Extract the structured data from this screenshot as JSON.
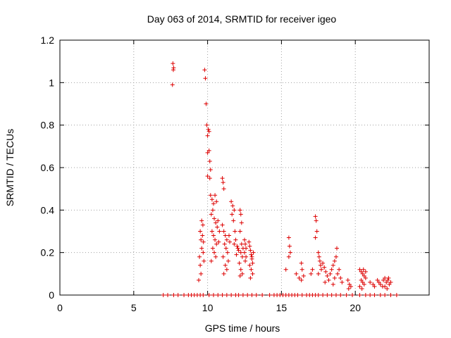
{
  "chart_data": {
    "type": "scatter",
    "title": "Day 063 of 2014, SRMTID for receiver igeo",
    "xlabel": "GPS time / hours",
    "ylabel": "SRMTID / TECUs",
    "xlim": [
      0,
      25
    ],
    "ylim": [
      0,
      1.2
    ],
    "grid": true,
    "marker": "+",
    "xticks": [
      0,
      5,
      10,
      15,
      20
    ],
    "xtick_labels": [
      "0",
      "5",
      "10",
      "15",
      "20"
    ],
    "yticks": [
      0,
      0.2,
      0.4,
      0.6,
      0.8,
      1,
      1.2
    ],
    "ytick_labels": [
      "0",
      "0.2",
      "0.4",
      "0.6",
      "0.8",
      "1",
      "1.2"
    ],
    "series": [
      {
        "name": "SRMTID",
        "color": "#dd0000",
        "points": [
          [
            7.65,
            1.09
          ],
          [
            7.7,
            1.07
          ],
          [
            7.68,
            1.06
          ],
          [
            7.62,
            0.99
          ],
          [
            9.8,
            1.06
          ],
          [
            9.85,
            1.02
          ],
          [
            9.9,
            0.9
          ],
          [
            9.95,
            0.8
          ],
          [
            10.05,
            0.78
          ],
          [
            10.1,
            0.77
          ],
          [
            10.0,
            0.75
          ],
          [
            10.1,
            0.68
          ],
          [
            10.0,
            0.67
          ],
          [
            10.15,
            0.63
          ],
          [
            10.2,
            0.59
          ],
          [
            10.0,
            0.56
          ],
          [
            10.15,
            0.55
          ],
          [
            9.5,
            0.3
          ],
          [
            9.55,
            0.26
          ],
          [
            9.6,
            0.22
          ],
          [
            9.45,
            0.18
          ],
          [
            9.5,
            0.14
          ],
          [
            9.55,
            0.1
          ],
          [
            9.4,
            0.07
          ],
          [
            9.6,
            0.35
          ],
          [
            9.65,
            0.28
          ],
          [
            9.7,
            0.2
          ],
          [
            9.75,
            0.16
          ],
          [
            9.68,
            0.33
          ],
          [
            9.72,
            0.25
          ],
          [
            10.2,
            0.47
          ],
          [
            10.3,
            0.45
          ],
          [
            10.4,
            0.43
          ],
          [
            10.5,
            0.47
          ],
          [
            10.6,
            0.44
          ],
          [
            10.35,
            0.4
          ],
          [
            10.25,
            0.38
          ],
          [
            10.45,
            0.36
          ],
          [
            10.55,
            0.34
          ],
          [
            10.65,
            0.32
          ],
          [
            10.3,
            0.3
          ],
          [
            10.4,
            0.28
          ],
          [
            10.5,
            0.26
          ],
          [
            10.6,
            0.24
          ],
          [
            10.35,
            0.22
          ],
          [
            10.45,
            0.2
          ],
          [
            10.55,
            0.18
          ],
          [
            10.25,
            0.16
          ],
          [
            10.7,
            0.35
          ],
          [
            10.8,
            0.3
          ],
          [
            10.75,
            0.25
          ],
          [
            11.0,
            0.55
          ],
          [
            11.05,
            0.53
          ],
          [
            11.1,
            0.5
          ],
          [
            11.0,
            0.33
          ],
          [
            11.1,
            0.3
          ],
          [
            11.2,
            0.28
          ],
          [
            11.3,
            0.26
          ],
          [
            11.15,
            0.24
          ],
          [
            11.25,
            0.22
          ],
          [
            11.35,
            0.2
          ],
          [
            11.05,
            0.18
          ],
          [
            11.4,
            0.16
          ],
          [
            11.5,
            0.25
          ],
          [
            11.45,
            0.28
          ],
          [
            11.2,
            0.14
          ],
          [
            11.3,
            0.12
          ],
          [
            11.1,
            0.1
          ],
          [
            11.6,
            0.44
          ],
          [
            11.7,
            0.42
          ],
          [
            11.8,
            0.4
          ],
          [
            11.65,
            0.38
          ],
          [
            11.75,
            0.35
          ],
          [
            11.85,
            0.3
          ],
          [
            11.9,
            0.26
          ],
          [
            12.0,
            0.23
          ],
          [
            12.1,
            0.21
          ],
          [
            11.95,
            0.19
          ],
          [
            12.05,
            0.22
          ],
          [
            11.8,
            0.24
          ],
          [
            12.2,
            0.4
          ],
          [
            12.25,
            0.38
          ],
          [
            12.3,
            0.34
          ],
          [
            12.2,
            0.3
          ],
          [
            12.3,
            0.24
          ],
          [
            12.4,
            0.22
          ],
          [
            12.25,
            0.2
          ],
          [
            12.35,
            0.18
          ],
          [
            12.15,
            0.15
          ],
          [
            12.25,
            0.12
          ],
          [
            12.35,
            0.1
          ],
          [
            12.2,
            0.09
          ],
          [
            12.5,
            0.26
          ],
          [
            12.55,
            0.24
          ],
          [
            12.6,
            0.22
          ],
          [
            12.5,
            0.2
          ],
          [
            12.6,
            0.18
          ],
          [
            12.55,
            0.16
          ],
          [
            12.8,
            0.25
          ],
          [
            12.85,
            0.23
          ],
          [
            12.9,
            0.21
          ],
          [
            12.95,
            0.19
          ],
          [
            13.0,
            0.17
          ],
          [
            13.05,
            0.15
          ],
          [
            12.85,
            0.14
          ],
          [
            12.95,
            0.12
          ],
          [
            13.05,
            0.1
          ],
          [
            12.9,
            0.08
          ],
          [
            13.0,
            0.18
          ],
          [
            13.1,
            0.2
          ],
          [
            15.5,
            0.27
          ],
          [
            15.55,
            0.23
          ],
          [
            15.6,
            0.2
          ],
          [
            15.5,
            0.18
          ],
          [
            15.3,
            0.12
          ],
          [
            16.0,
            0.1
          ],
          [
            16.2,
            0.08
          ],
          [
            16.35,
            0.15
          ],
          [
            16.4,
            0.12
          ],
          [
            16.5,
            0.09
          ],
          [
            16.35,
            0.07
          ],
          [
            17.0,
            0.1
          ],
          [
            17.1,
            0.12
          ],
          [
            17.3,
            0.37
          ],
          [
            17.35,
            0.35
          ],
          [
            17.4,
            0.3
          ],
          [
            17.3,
            0.27
          ],
          [
            17.5,
            0.2
          ],
          [
            17.55,
            0.18
          ],
          [
            17.6,
            0.16
          ],
          [
            17.65,
            0.14
          ],
          [
            17.7,
            0.12
          ],
          [
            17.5,
            0.1
          ],
          [
            17.8,
            0.15
          ],
          [
            17.9,
            0.13
          ],
          [
            18.0,
            0.11
          ],
          [
            18.1,
            0.09
          ],
          [
            18.2,
            0.07
          ],
          [
            17.95,
            0.06
          ],
          [
            18.3,
            0.1
          ],
          [
            18.4,
            0.12
          ],
          [
            18.5,
            0.14
          ],
          [
            18.6,
            0.16
          ],
          [
            18.7,
            0.18
          ],
          [
            18.75,
            0.22
          ],
          [
            18.6,
            0.08
          ],
          [
            18.8,
            0.1
          ],
          [
            18.9,
            0.12
          ],
          [
            19.0,
            0.08
          ],
          [
            19.1,
            0.06
          ],
          [
            18.5,
            0.05
          ],
          [
            19.5,
            0.07
          ],
          [
            19.6,
            0.05
          ],
          [
            19.7,
            0.04
          ],
          [
            19.55,
            0.03
          ],
          [
            20.3,
            0.12
          ],
          [
            20.4,
            0.11
          ],
          [
            20.5,
            0.1
          ],
          [
            20.6,
            0.09
          ],
          [
            20.7,
            0.08
          ],
          [
            20.4,
            0.07
          ],
          [
            20.5,
            0.06
          ],
          [
            20.6,
            0.05
          ],
          [
            20.3,
            0.04
          ],
          [
            20.7,
            0.11
          ],
          [
            20.55,
            0.12
          ],
          [
            20.45,
            0.03
          ],
          [
            21.0,
            0.06
          ],
          [
            21.2,
            0.05
          ],
          [
            21.3,
            0.04
          ],
          [
            21.5,
            0.07
          ],
          [
            21.6,
            0.06
          ],
          [
            21.7,
            0.05
          ],
          [
            21.9,
            0.07
          ],
          [
            22.0,
            0.08
          ],
          [
            22.1,
            0.06
          ],
          [
            22.2,
            0.07
          ],
          [
            22.3,
            0.05
          ],
          [
            22.4,
            0.06
          ],
          [
            22.0,
            0.04
          ],
          [
            22.15,
            0.03
          ],
          [
            22.25,
            0.08
          ],
          [
            21.85,
            0.04
          ],
          [
            7.0,
            0.0
          ],
          [
            7.3,
            0.0
          ],
          [
            7.7,
            0.0
          ],
          [
            8.0,
            0.0
          ],
          [
            8.4,
            0.0
          ],
          [
            8.7,
            0.0
          ],
          [
            8.9,
            0.0
          ],
          [
            9.1,
            0.0
          ],
          [
            9.3,
            0.0
          ],
          [
            9.5,
            0.0
          ],
          [
            9.7,
            0.0
          ],
          [
            10.1,
            0.0
          ],
          [
            10.4,
            0.0
          ],
          [
            10.7,
            0.0
          ],
          [
            11.0,
            0.0
          ],
          [
            11.3,
            0.0
          ],
          [
            11.6,
            0.0
          ],
          [
            11.9,
            0.0
          ],
          [
            12.1,
            0.0
          ],
          [
            12.4,
            0.0
          ],
          [
            12.7,
            0.0
          ],
          [
            13.0,
            0.0
          ],
          [
            13.3,
            0.0
          ],
          [
            13.7,
            0.0
          ],
          [
            14.2,
            0.0
          ],
          [
            14.5,
            0.0
          ],
          [
            14.7,
            0.0
          ],
          [
            14.9,
            0.0
          ],
          [
            15.1,
            0.0
          ],
          [
            15.3,
            0.0
          ],
          [
            15.5,
            0.0
          ],
          [
            15.7,
            0.0
          ],
          [
            15.9,
            0.0
          ],
          [
            16.1,
            0.0
          ],
          [
            16.4,
            0.0
          ],
          [
            16.7,
            0.0
          ],
          [
            16.9,
            0.0
          ],
          [
            17.1,
            0.0
          ],
          [
            17.3,
            0.0
          ],
          [
            17.5,
            0.0
          ],
          [
            17.8,
            0.0
          ],
          [
            18.1,
            0.0
          ],
          [
            18.4,
            0.0
          ],
          [
            18.7,
            0.0
          ],
          [
            19.0,
            0.0
          ],
          [
            19.4,
            0.0
          ],
          [
            19.8,
            0.0
          ],
          [
            20.3,
            0.0
          ],
          [
            20.7,
            0.0
          ],
          [
            21.0,
            0.0
          ],
          [
            21.3,
            0.0
          ],
          [
            21.7,
            0.0
          ],
          [
            22.0,
            0.0
          ],
          [
            22.4,
            0.0
          ],
          [
            22.8,
            0.0
          ]
        ]
      }
    ]
  }
}
